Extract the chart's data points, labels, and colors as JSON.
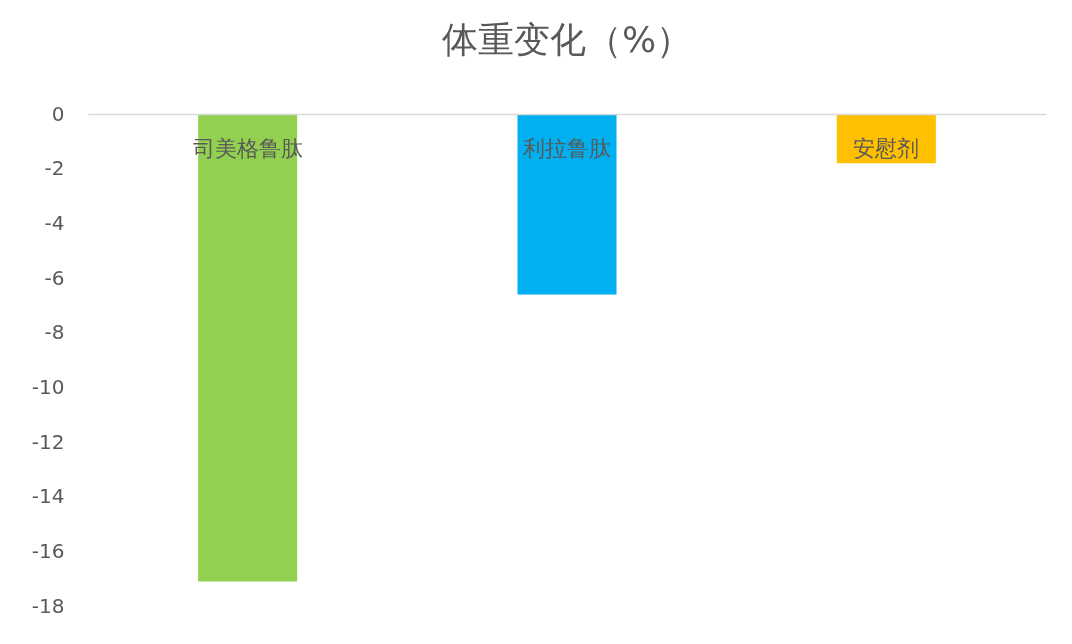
{
  "chart_data": {
    "type": "bar",
    "title": "体重变化（%）",
    "categories": [
      "司美格鲁肽",
      "利拉鲁肽",
      "安慰剂"
    ],
    "values": [
      -17.1,
      -6.6,
      -1.8
    ],
    "colors": [
      "#92d050",
      "#00b0f0",
      "#ffc000"
    ],
    "ylim": [
      -18,
      0
    ],
    "yticks": [
      0,
      -2,
      -4,
      -6,
      -8,
      -10,
      -12,
      -14,
      -16,
      -18
    ]
  }
}
